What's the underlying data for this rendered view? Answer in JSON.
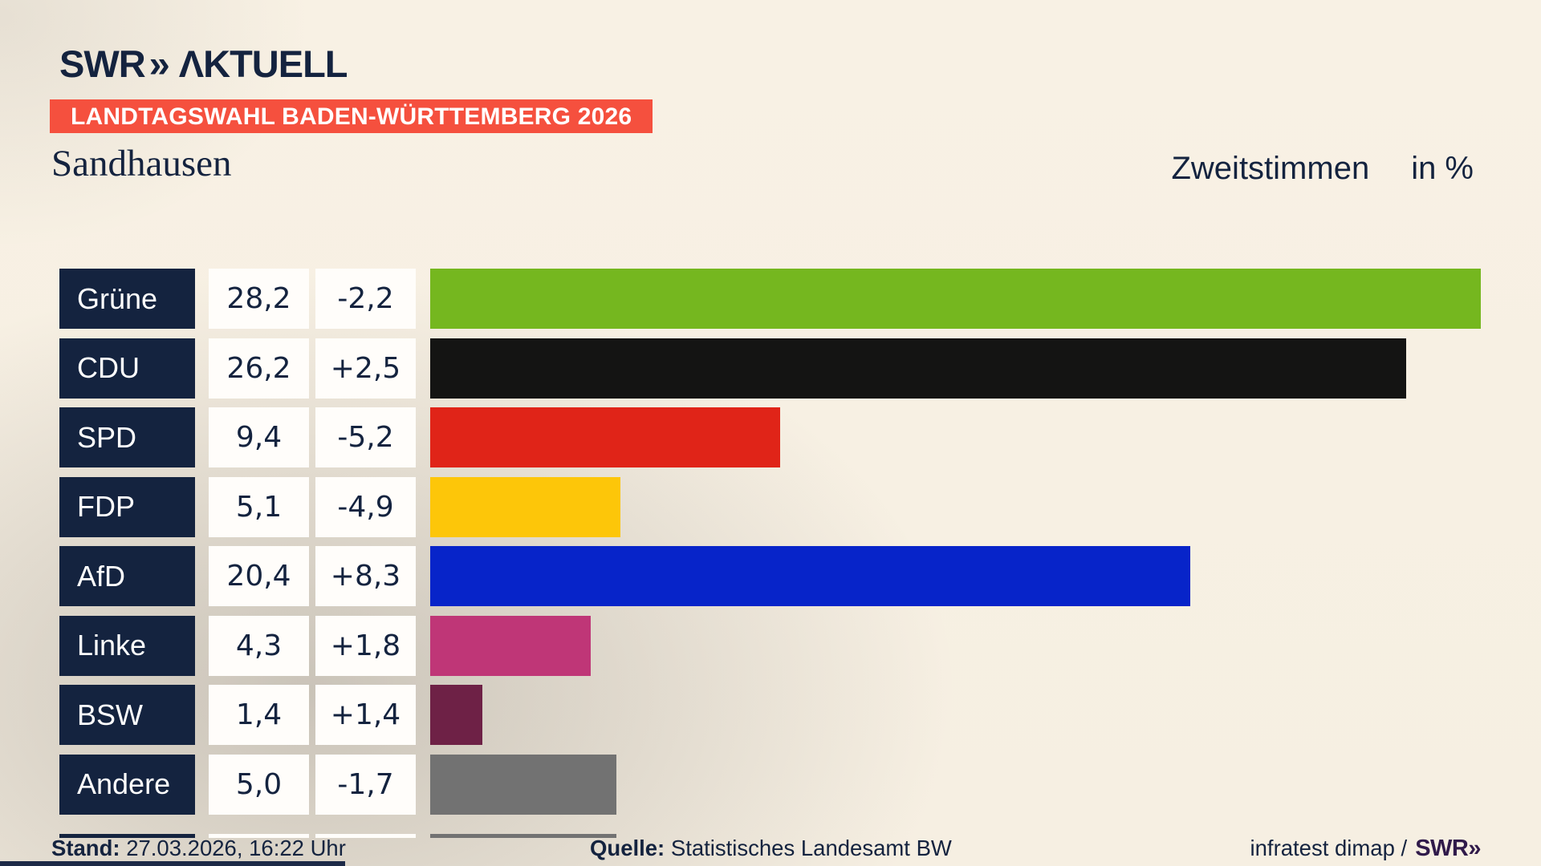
{
  "colors": {
    "navy": "#14233f",
    "banner-red": "#f5503e",
    "box-white": "#fffdfa",
    "footer-logo-purple": "#301a4a",
    "strip-navy": "#1d2a47",
    "bg-cream": "#f8f1e4"
  },
  "header": {
    "logo": {
      "brand": "SWR",
      "chevron": "»",
      "suffix": "ΛKTUELL"
    },
    "banner": "LANDTAGSWAHL BADEN-WÜRTTEMBERG 2026",
    "municipality": "Sandhausen",
    "measure": "Zweitstimmen",
    "unit": "in %"
  },
  "chart_data": {
    "type": "bar",
    "orientation": "horizontal",
    "title": "Landtagswahl Baden-Württemberg 2026 – Sandhausen – Zweitstimmen in %",
    "categories": [
      "Grüne",
      "CDU",
      "SPD",
      "FDP",
      "AfD",
      "Linke",
      "BSW",
      "Andere"
    ],
    "values": [
      28.2,
      26.2,
      9.4,
      5.1,
      20.4,
      4.3,
      1.4,
      5.0
    ],
    "value_labels": [
      "28,2",
      "26,2",
      "9,4",
      "5,1",
      "20,4",
      "4,3",
      "1,4",
      "5,0"
    ],
    "changes": [
      -2.2,
      2.5,
      -5.2,
      -4.9,
      8.3,
      1.8,
      1.4,
      -1.7
    ],
    "change_labels": [
      "-2,2",
      "+2,5",
      "-5,2",
      "-4,9",
      "+8,3",
      "+1,8",
      "+1,4",
      "-1,7"
    ],
    "bar_colors": [
      "#75b71f",
      "#141413",
      "#e02418",
      "#fdc609",
      "#0724c9",
      "#bf3677",
      "#6e2146",
      "#727272"
    ],
    "scale_max": 28.2,
    "unit": "%",
    "grid": false,
    "legend": false
  },
  "cutoff_row": {
    "bar_color": "#727272",
    "bar_pct": 17.7
  },
  "footer": {
    "stand_label": "Stand:",
    "stand_value": "27.03.2026, 16:22 Uhr",
    "quelle_label": "Quelle:",
    "quelle_value": "Statistisches Landesamt BW",
    "credit_text": "infratest dimap /",
    "credit_logo_brand": "SWR",
    "credit_logo_chevron": "»"
  }
}
